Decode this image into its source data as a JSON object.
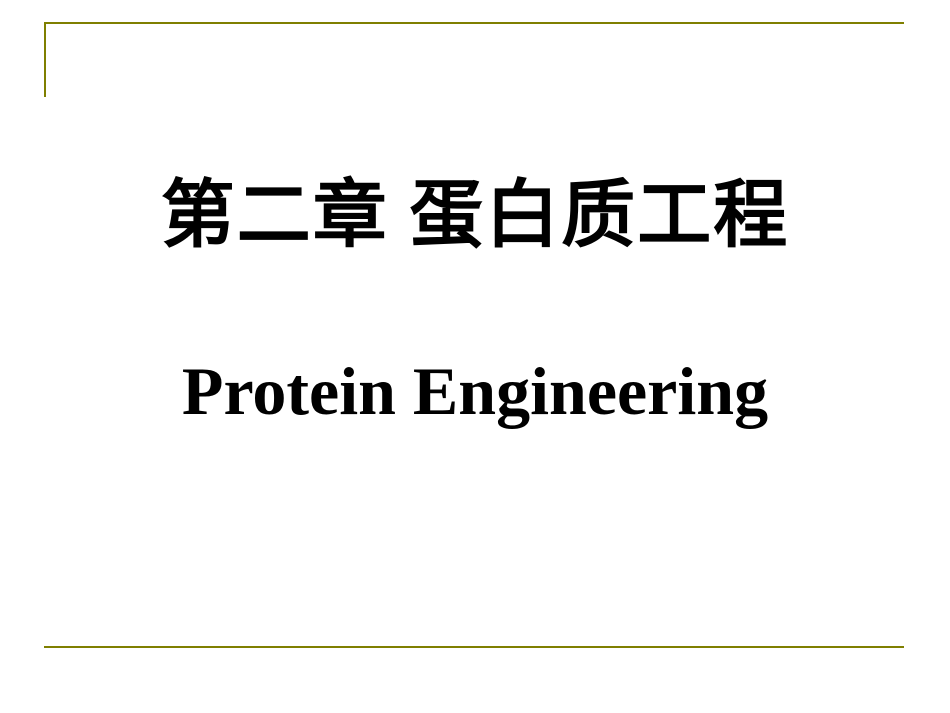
{
  "slide": {
    "title_chinese": "第二章  蛋白质工程",
    "title_english": "Protein Engineering",
    "border_color": "#7f7f00",
    "background_color": "#ffffff",
    "text_color": "#000000",
    "title_cn_fontsize": 74,
    "title_en_fontsize": 68,
    "font_family_cn": "SimSun",
    "font_family_en": "Times New Roman"
  }
}
